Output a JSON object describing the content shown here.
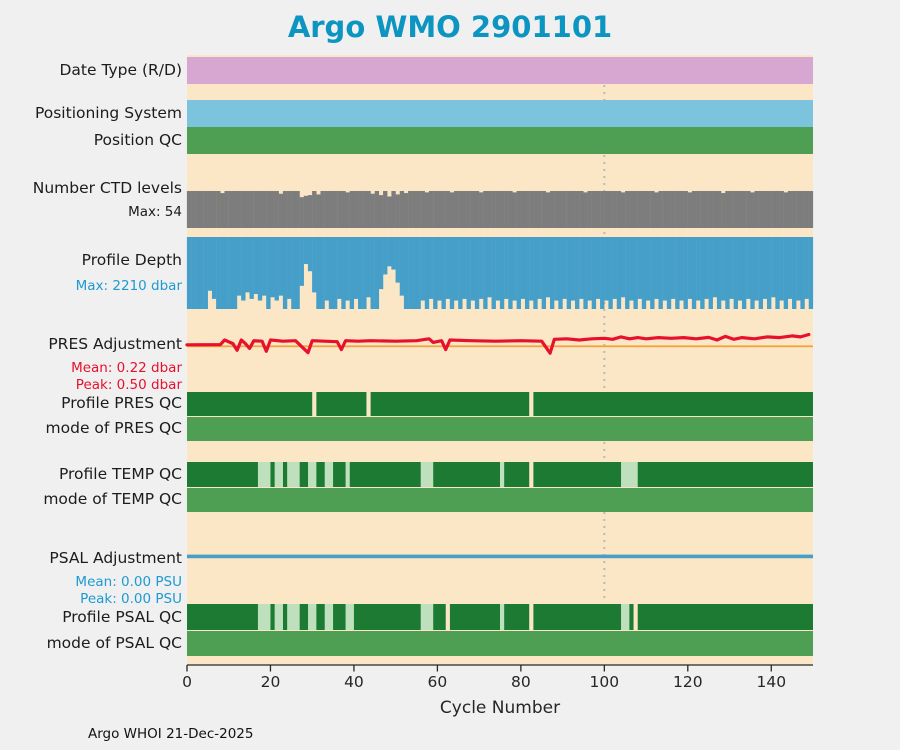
{
  "title": "Argo WMO 2901101",
  "footer": "Argo WHOI 21-Dec-2025",
  "x_axis": {
    "label": "Cycle Number"
  },
  "labels": {
    "date_type": "Date Type (R/D)",
    "positioning_system": "Positioning System",
    "position_qc": "Position QC",
    "ctd_levels": "Number CTD levels",
    "ctd_max": "Max: 54",
    "profile_depth": "Profile Depth",
    "depth_max": "Max: 2210 dbar",
    "pres_adj": "PRES Adjustment",
    "pres_mean": "Mean: 0.22 dbar",
    "pres_peak": "Peak: 0.50 dbar",
    "profile_pres_qc": "Profile PRES QC",
    "mode_pres_qc": "mode of PRES QC",
    "profile_temp_qc": "Profile TEMP QC",
    "mode_temp_qc": "mode of TEMP QC",
    "psal_adj": "PSAL Adjustment",
    "psal_mean": "Mean: 0.00 PSU",
    "psal_peak": "Peak: 0.00 PSU",
    "profile_psal_qc": "Profile PSAL QC",
    "mode_psal_qc": "mode of PSAL QC"
  },
  "colors": {
    "background": "#f0f0f0",
    "plot_bg": "#fbe7c6",
    "title": "#0d95c1",
    "date_type": "#d7a6d1",
    "positioning": "#7cc3de",
    "qc_good": "#4e9e54",
    "qc_dark": "#1d7a33",
    "qc_light": "#bfe0bd",
    "ctd_gray": "#7d7d7d",
    "depth_blue": "#459fc8",
    "pres_line": "#e8112d",
    "zero_line": "#f2a33c",
    "psal_line": "#459fc8",
    "text_red": "#e8112d",
    "text_blue": "#1e9ad2",
    "marker_line": "#b9b9b9"
  },
  "chart_data": {
    "type": "multi-band-timeline",
    "title": "Argo WMO 2901101",
    "x": {
      "label": "Cycle Number",
      "min": 0,
      "max": 150,
      "ticks": [
        0,
        20,
        40,
        60,
        80,
        100,
        120,
        140
      ]
    },
    "marker_cycle": 100,
    "bands": {
      "date_type": {
        "type": "band",
        "color_key": "date_type"
      },
      "positioning_system": {
        "type": "band",
        "color_key": "positioning"
      },
      "position_qc": {
        "type": "band",
        "color_key": "qc_good"
      },
      "ctd_levels": {
        "type": "bars_from_bottom",
        "max": 54,
        "default": 54,
        "dips": [
          [
            8,
            51
          ],
          [
            22,
            50
          ],
          [
            27,
            45
          ],
          [
            28,
            47
          ],
          [
            29,
            48
          ],
          [
            31,
            49
          ],
          [
            38,
            52
          ],
          [
            44,
            50
          ],
          [
            46,
            48
          ],
          [
            48,
            46
          ],
          [
            50,
            49
          ],
          [
            52,
            51
          ],
          [
            57,
            52
          ],
          [
            63,
            52
          ],
          [
            70,
            52
          ],
          [
            78,
            52
          ],
          [
            86,
            52
          ],
          [
            95,
            52
          ],
          [
            104,
            52
          ],
          [
            112,
            52
          ],
          [
            120,
            52
          ],
          [
            128,
            51
          ],
          [
            135,
            52
          ],
          [
            143,
            52
          ]
        ]
      },
      "profile_depth": {
        "type": "bars_from_top",
        "max": 2210,
        "default": 2210,
        "dips": [
          [
            5,
            1650
          ],
          [
            6,
            1900
          ],
          [
            12,
            1800
          ],
          [
            13,
            1950
          ],
          [
            14,
            1700
          ],
          [
            15,
            1900
          ],
          [
            16,
            1750
          ],
          [
            17,
            1950
          ],
          [
            18,
            1800
          ],
          [
            20,
            1850
          ],
          [
            21,
            1950
          ],
          [
            22,
            1800
          ],
          [
            24,
            1900
          ],
          [
            27,
            1500
          ],
          [
            28,
            830
          ],
          [
            29,
            1050
          ],
          [
            30,
            1700
          ],
          [
            33,
            1950
          ],
          [
            36,
            1900
          ],
          [
            38,
            1950
          ],
          [
            40,
            1900
          ],
          [
            43,
            1850
          ],
          [
            46,
            1600
          ],
          [
            47,
            1150
          ],
          [
            48,
            900
          ],
          [
            49,
            1000
          ],
          [
            50,
            1400
          ],
          [
            51,
            1800
          ],
          [
            56,
            1950
          ],
          [
            58,
            1900
          ],
          [
            60,
            1950
          ],
          [
            62,
            1900
          ],
          [
            64,
            1950
          ],
          [
            66,
            1900
          ],
          [
            68,
            1950
          ],
          [
            70,
            1900
          ],
          [
            72,
            1850
          ],
          [
            74,
            1950
          ],
          [
            76,
            1900
          ],
          [
            78,
            1950
          ],
          [
            80,
            1900
          ],
          [
            82,
            1950
          ],
          [
            84,
            1900
          ],
          [
            86,
            1850
          ],
          [
            88,
            1950
          ],
          [
            90,
            1900
          ],
          [
            92,
            1950
          ],
          [
            94,
            1900
          ],
          [
            96,
            1950
          ],
          [
            98,
            1900
          ],
          [
            100,
            1950
          ],
          [
            102,
            1900
          ],
          [
            104,
            1850
          ],
          [
            106,
            1950
          ],
          [
            108,
            1900
          ],
          [
            110,
            1950
          ],
          [
            112,
            1900
          ],
          [
            114,
            1950
          ],
          [
            116,
            1900
          ],
          [
            118,
            1950
          ],
          [
            120,
            1900
          ],
          [
            122,
            1950
          ],
          [
            124,
            1900
          ],
          [
            126,
            1850
          ],
          [
            128,
            1950
          ],
          [
            130,
            1900
          ],
          [
            132,
            1950
          ],
          [
            134,
            1900
          ],
          [
            136,
            1950
          ],
          [
            138,
            1900
          ],
          [
            140,
            1850
          ],
          [
            142,
            1950
          ],
          [
            144,
            1900
          ],
          [
            146,
            1950
          ],
          [
            148,
            1900
          ]
        ]
      },
      "pres_adjustment": {
        "type": "line",
        "units": "dbar",
        "mean": 0.22,
        "peak": 0.5,
        "zero_line": true,
        "points": [
          [
            0,
            0.05
          ],
          [
            8,
            0.06
          ],
          [
            9,
            0.25
          ],
          [
            11,
            0.1
          ],
          [
            12,
            -0.18
          ],
          [
            13,
            0.25
          ],
          [
            14,
            0.1
          ],
          [
            15,
            -0.1
          ],
          [
            16,
            0.22
          ],
          [
            18,
            0.2
          ],
          [
            19,
            -0.22
          ],
          [
            20,
            0.25
          ],
          [
            23,
            0.2
          ],
          [
            26,
            0.22
          ],
          [
            29,
            -0.28
          ],
          [
            30,
            0.22
          ],
          [
            33,
            0.2
          ],
          [
            36,
            0.18
          ],
          [
            37,
            -0.15
          ],
          [
            38,
            0.22
          ],
          [
            41,
            0.2
          ],
          [
            44,
            0.22
          ],
          [
            50,
            0.2
          ],
          [
            55,
            0.22
          ],
          [
            58,
            0.3
          ],
          [
            59,
            0.15
          ],
          [
            61,
            0.22
          ],
          [
            62,
            -0.15
          ],
          [
            63,
            0.25
          ],
          [
            68,
            0.22
          ],
          [
            74,
            0.2
          ],
          [
            80,
            0.22
          ],
          [
            85,
            0.2
          ],
          [
            87,
            -0.3
          ],
          [
            88,
            0.28
          ],
          [
            91,
            0.3
          ],
          [
            94,
            0.25
          ],
          [
            97,
            0.3
          ],
          [
            100,
            0.32
          ],
          [
            102,
            0.28
          ],
          [
            104,
            0.38
          ],
          [
            106,
            0.3
          ],
          [
            108,
            0.35
          ],
          [
            110,
            0.3
          ],
          [
            113,
            0.35
          ],
          [
            116,
            0.32
          ],
          [
            119,
            0.35
          ],
          [
            122,
            0.3
          ],
          [
            125,
            0.36
          ],
          [
            127,
            0.25
          ],
          [
            129,
            0.4
          ],
          [
            131,
            0.28
          ],
          [
            133,
            0.35
          ],
          [
            136,
            0.3
          ],
          [
            139,
            0.38
          ],
          [
            142,
            0.35
          ],
          [
            145,
            0.42
          ],
          [
            147,
            0.38
          ],
          [
            149,
            0.48
          ]
        ]
      },
      "profile_pres_qc": {
        "type": "qc_band",
        "base": "qc_dark",
        "light_segments": [],
        "gaps": [
          [
            30,
            31
          ],
          [
            43,
            44
          ],
          [
            82,
            83
          ]
        ]
      },
      "mode_pres_qc": {
        "type": "qc_band",
        "base": "qc_good"
      },
      "profile_temp_qc": {
        "type": "qc_band",
        "base": "qc_dark",
        "light_segments": [
          [
            17,
            20
          ],
          [
            21,
            23
          ],
          [
            24,
            27
          ],
          [
            29,
            31
          ],
          [
            33,
            35
          ],
          [
            38,
            39
          ],
          [
            56,
            59
          ],
          [
            75,
            76
          ],
          [
            104,
            108
          ]
        ],
        "gaps": [
          [
            82,
            83
          ]
        ]
      },
      "mode_temp_qc": {
        "type": "qc_band",
        "base": "qc_good"
      },
      "psal_adjustment": {
        "type": "line",
        "units": "PSU",
        "mean": 0.0,
        "peak": 0.0,
        "points": [
          [
            0,
            0
          ],
          [
            149,
            0
          ]
        ]
      },
      "profile_psal_qc": {
        "type": "qc_band",
        "base": "qc_dark",
        "light_segments": [
          [
            17,
            20
          ],
          [
            21,
            23
          ],
          [
            24,
            27
          ],
          [
            29,
            31
          ],
          [
            33,
            35
          ],
          [
            38,
            40
          ],
          [
            56,
            59
          ],
          [
            75,
            76
          ],
          [
            104,
            106
          ]
        ],
        "gaps": [
          [
            62,
            63
          ],
          [
            82,
            83
          ],
          [
            107,
            108
          ]
        ]
      },
      "mode_psal_qc": {
        "type": "qc_band",
        "base": "qc_good"
      }
    }
  }
}
